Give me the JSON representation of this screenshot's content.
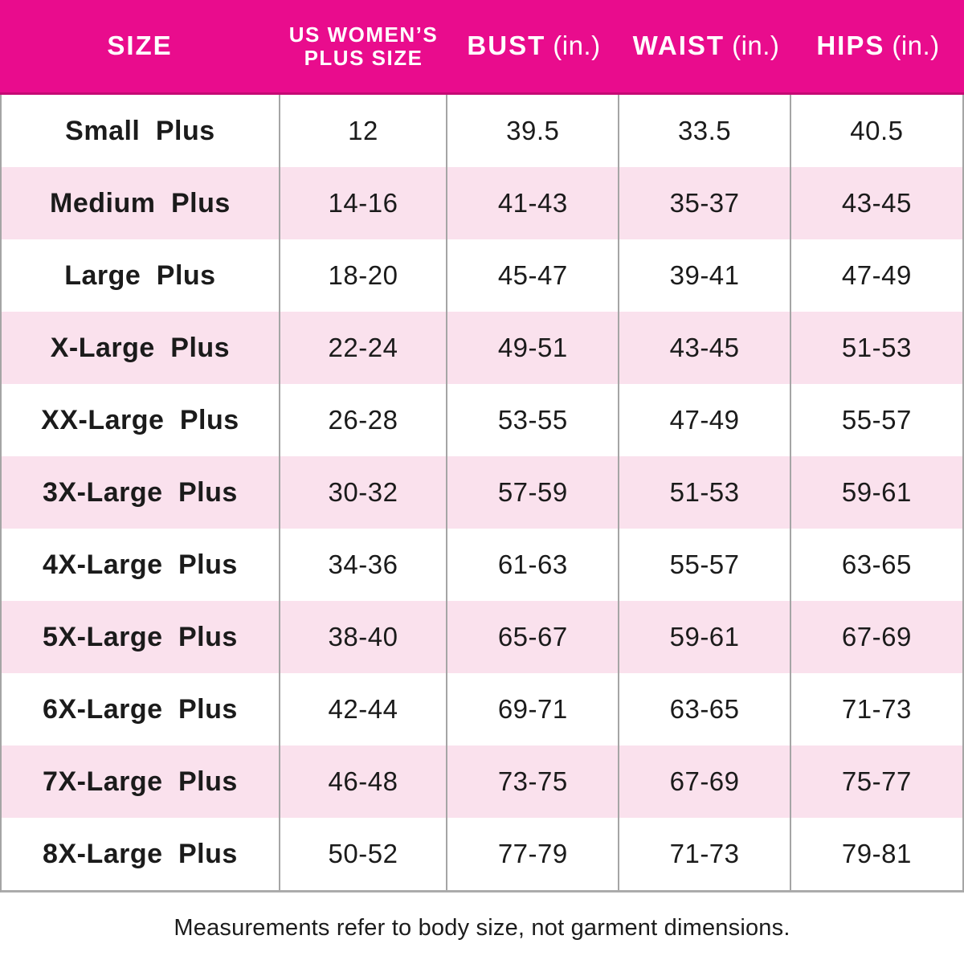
{
  "table": {
    "header": {
      "size": "SIZE",
      "plus_size_line1": "US WOMEN’S",
      "plus_size_line2": "PLUS SIZE",
      "bust": "BUST",
      "waist": "WAIST",
      "hips": "HIPS",
      "unit": "(in.)"
    },
    "columns": [
      "SIZE",
      "US WOMEN’S PLUS SIZE",
      "BUST (in.)",
      "WAIST (in.)",
      "HIPS (in.)"
    ],
    "rows": [
      {
        "size": "Small Plus",
        "us_plus_size": "12",
        "bust": "39.5",
        "waist": "33.5",
        "hips": "40.5"
      },
      {
        "size": "Medium Plus",
        "us_plus_size": "14-16",
        "bust": "41-43",
        "waist": "35-37",
        "hips": "43-45"
      },
      {
        "size": "Large Plus",
        "us_plus_size": "18-20",
        "bust": "45-47",
        "waist": "39-41",
        "hips": "47-49"
      },
      {
        "size": "X-Large Plus",
        "us_plus_size": "22-24",
        "bust": "49-51",
        "waist": "43-45",
        "hips": "51-53"
      },
      {
        "size": "XX-Large Plus",
        "us_plus_size": "26-28",
        "bust": "53-55",
        "waist": "47-49",
        "hips": "55-57"
      },
      {
        "size": "3X-Large Plus",
        "us_plus_size": "30-32",
        "bust": "57-59",
        "waist": "51-53",
        "hips": "59-61"
      },
      {
        "size": "4X-Large Plus",
        "us_plus_size": "34-36",
        "bust": "61-63",
        "waist": "55-57",
        "hips": "63-65"
      },
      {
        "size": "5X-Large Plus",
        "us_plus_size": "38-40",
        "bust": "65-67",
        "waist": "59-61",
        "hips": "67-69"
      },
      {
        "size": "6X-Large Plus",
        "us_plus_size": "42-44",
        "bust": "69-71",
        "waist": "63-65",
        "hips": "71-73"
      },
      {
        "size": "7X-Large Plus",
        "us_plus_size": "46-48",
        "bust": "73-75",
        "waist": "67-69",
        "hips": "75-77"
      },
      {
        "size": "8X-Large Plus",
        "us_plus_size": "50-52",
        "bust": "77-79",
        "waist": "71-73",
        "hips": "79-81"
      }
    ]
  },
  "footer": {
    "note": "Measurements refer to body size, not garment dimensions."
  },
  "colors": {
    "header_bg": "#E90C8D",
    "header_edge": "#C40A74",
    "header_text": "#FFFFFF",
    "row_alt_bg": "#FAE1ED",
    "row_bg": "#FFFFFF",
    "divider": "#A5A5A5",
    "text": "#1B1B1B"
  }
}
